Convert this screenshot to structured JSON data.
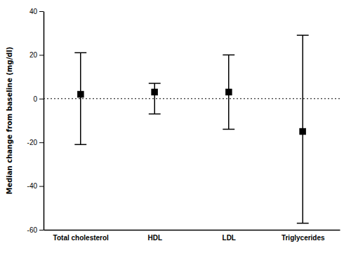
{
  "chart_data": {
    "type": "errorbar",
    "categories": [
      "Total cholesterol",
      "HDL",
      "LDL",
      "Triglycerides"
    ],
    "values": [
      2,
      3,
      3,
      -15
    ],
    "upper": [
      21,
      7,
      20,
      29
    ],
    "lower": [
      -21,
      -7,
      -14,
      -57
    ],
    "ylabel": "Median change from baseline (mg/dl)",
    "ylim": [
      -60,
      40
    ],
    "yticks": [
      -60,
      -40,
      -20,
      0,
      20,
      40
    ],
    "hline": 0,
    "marker": "square",
    "color": "black",
    "grid": false
  }
}
